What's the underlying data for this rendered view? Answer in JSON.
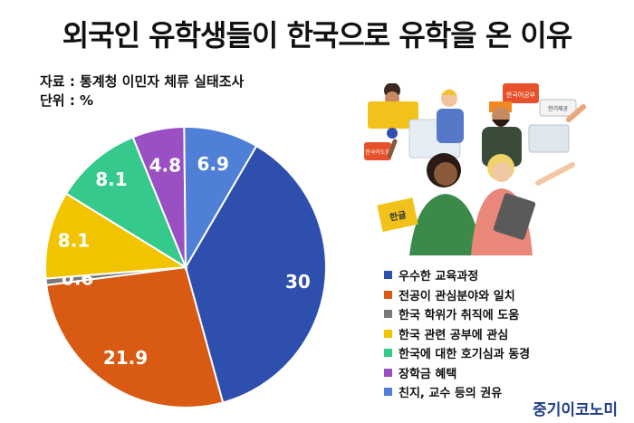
{
  "title": "외국인 유학생들이 한국으로 유학을 온 이유",
  "source": "자료 : 통계청 이민자 체류 실태조사",
  "unit": "단위 : %",
  "brand": "중기이코노미",
  "illustration": {
    "board1": "한국어공부",
    "board2": "한기제공",
    "board3": "한국어도움",
    "book": "한글"
  },
  "colors": {
    "edu": "#2f4fae",
    "major": "#d95a12",
    "degree": "#7a7a7a",
    "job": "#f2c400",
    "culture": "#36c98c",
    "scholar": "#9a4fc2",
    "family": "#4f7fd6"
  },
  "chart_data": {
    "type": "pie",
    "labels": [
      "우수한 교육과정",
      "전공이 관심분야와 일치",
      "한국 학위가 취직에 도움",
      "한국 관련 공부에 관심",
      "한국에 대한 호기심과 동경",
      "장학금 혜택",
      "친지, 교수 등의 권유"
    ],
    "values": [
      30,
      21.9,
      0.6,
      8.1,
      8.1,
      4.8,
      6.9
    ],
    "value_labels": [
      "30",
      "21.9",
      "0.6",
      "8.1",
      "8.1",
      "4.8",
      "6.9"
    ],
    "colors": [
      "#2f4fae",
      "#d95a12",
      "#7a7a7a",
      "#f2c400",
      "#36c98c",
      "#9a4fc2",
      "#4f7fd6"
    ],
    "legend_position": "bottom-right"
  }
}
